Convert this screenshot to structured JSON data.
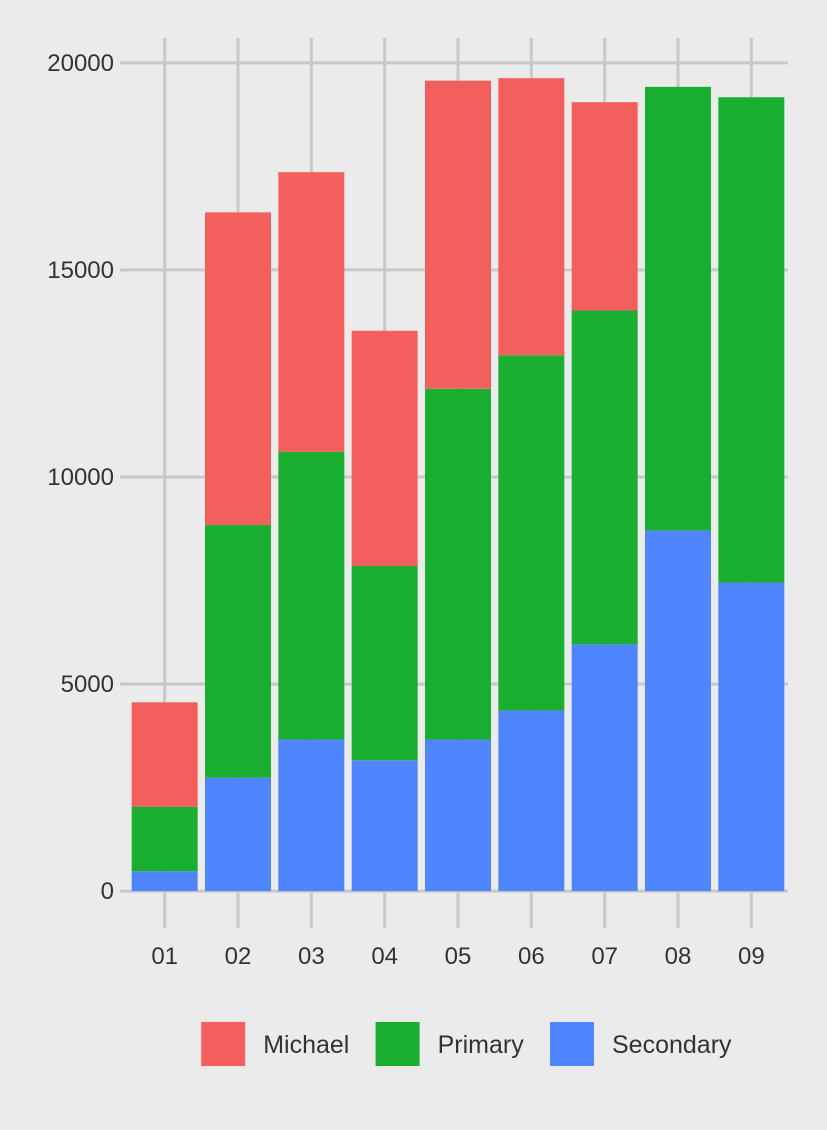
{
  "chart_data": {
    "type": "bar",
    "stacked": true,
    "categories": [
      "01",
      "02",
      "03",
      "04",
      "05",
      "06",
      "07",
      "08",
      "09"
    ],
    "series": [
      {
        "name": "Secondary",
        "color": "#4f86ff",
        "values": [
          480,
          2740,
          3660,
          3160,
          3660,
          4360,
          5960,
          8710,
          7450
        ]
      },
      {
        "name": "Primary",
        "color": "#1aaf30",
        "values": [
          1560,
          6100,
          6950,
          4690,
          8470,
          8580,
          8060,
          10710,
          11720
        ]
      },
      {
        "name": "Michael",
        "color": "#f35f5c",
        "values": [
          2520,
          7550,
          6750,
          5680,
          7440,
          6690,
          5030,
          0,
          0
        ]
      }
    ],
    "title": "",
    "xlabel": "",
    "ylabel": "",
    "ylim": [
      -600,
      20600
    ],
    "yticks": [
      0,
      5000,
      10000,
      15000,
      20000
    ],
    "ytick_labels": [
      "0",
      "5000",
      "10000",
      "15000",
      "20000"
    ],
    "grid": true,
    "legend": {
      "position": "bottom",
      "order": [
        "Michael",
        "Primary",
        "Secondary"
      ]
    },
    "colors": {
      "background": "#ebebeb",
      "grid": "#c8c8c8",
      "tick_text": "#333333",
      "legend_text": "#333333"
    }
  }
}
